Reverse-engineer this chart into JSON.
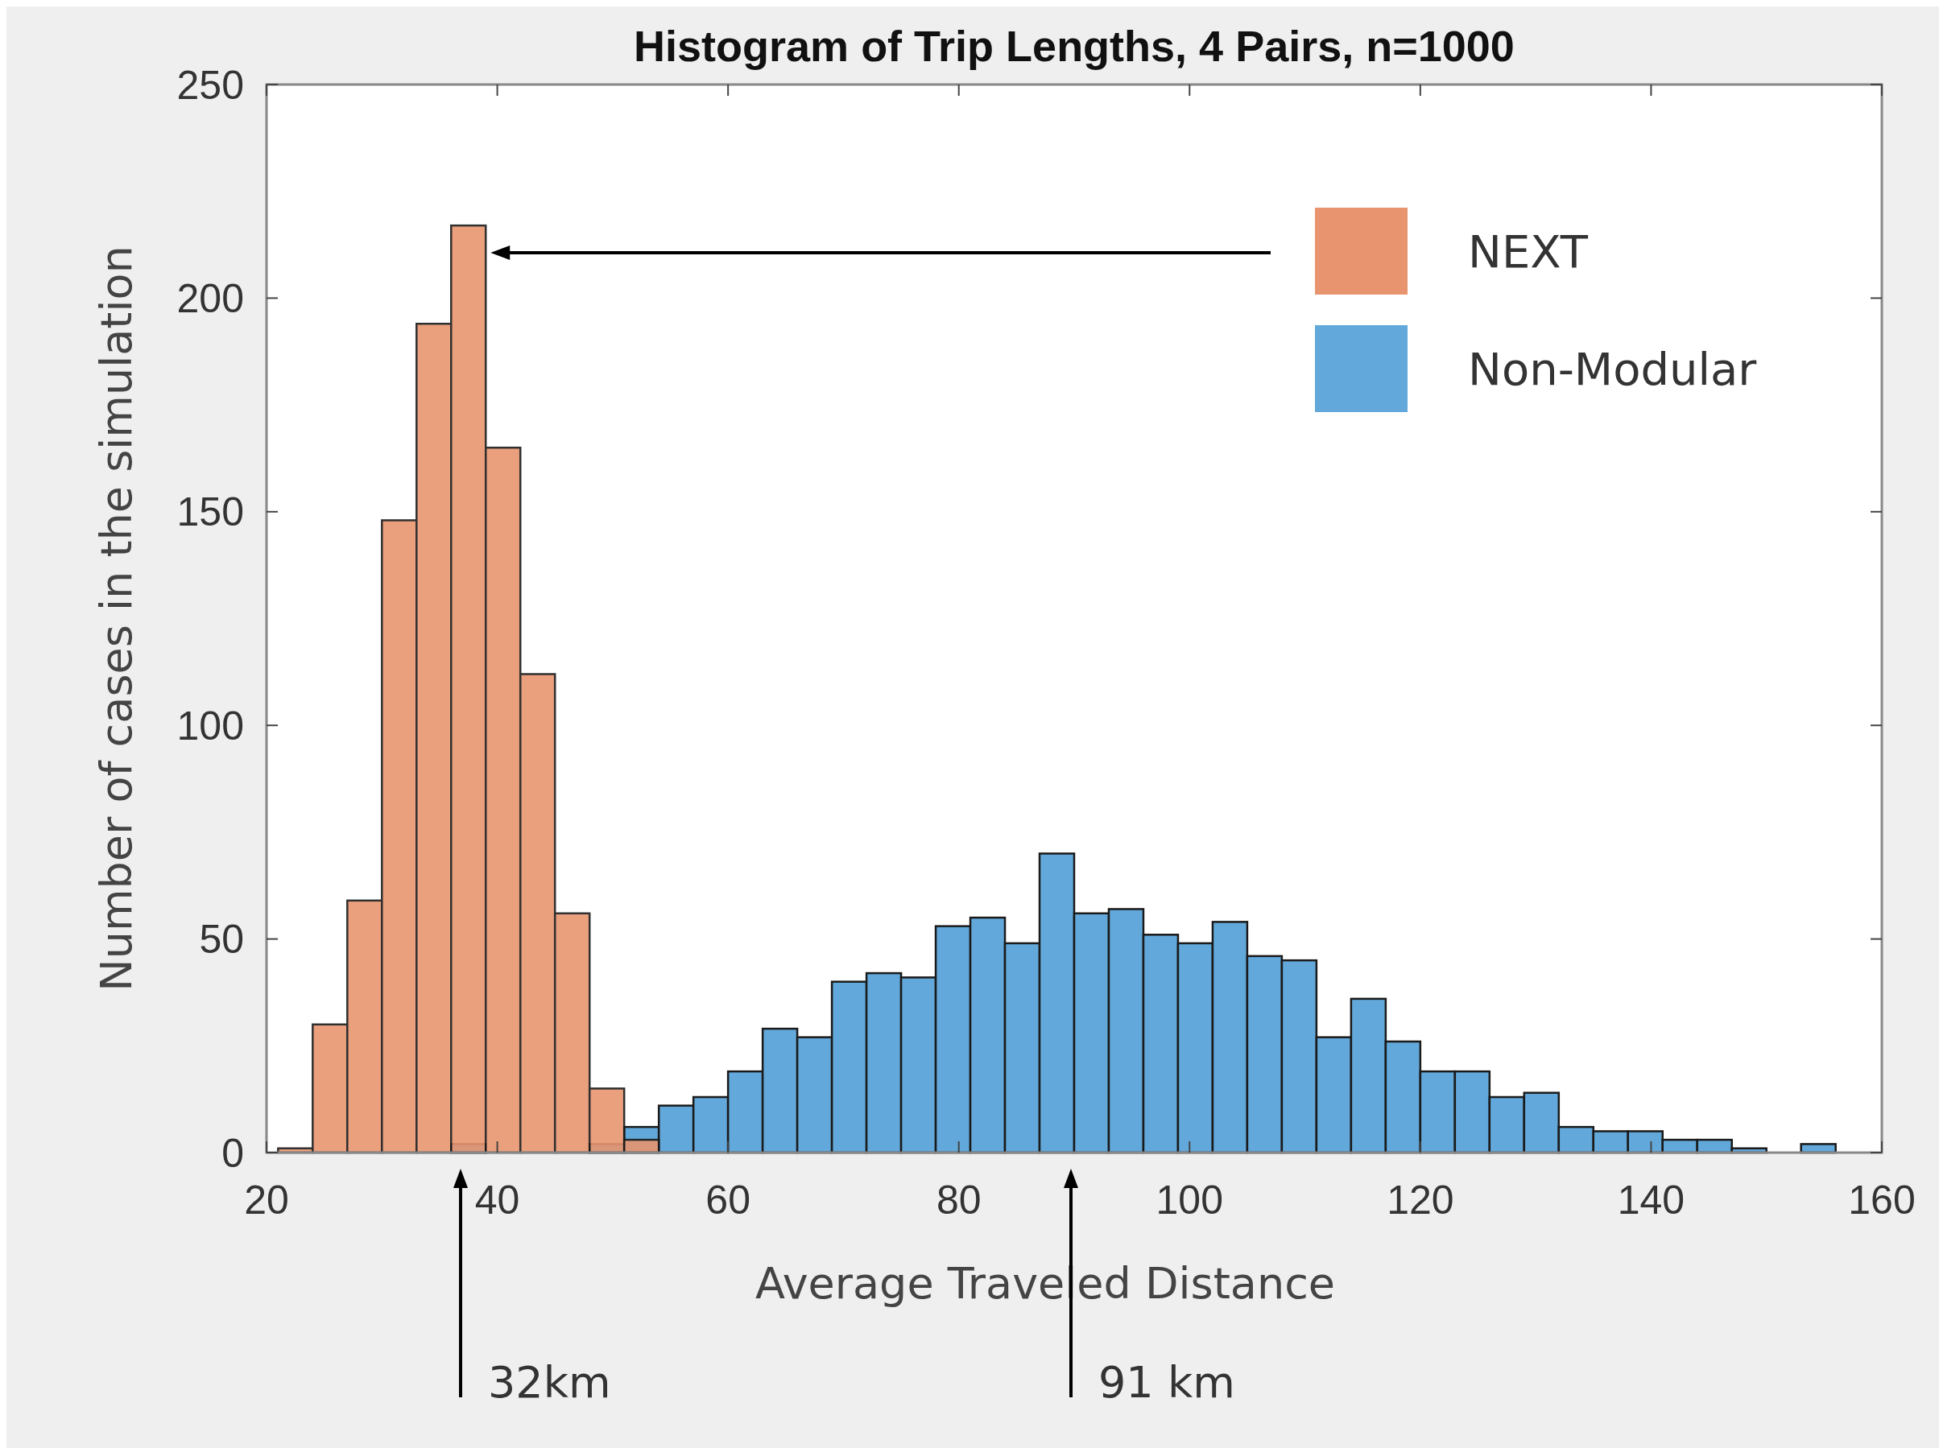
{
  "chart_data": {
    "type": "histogram",
    "title": "Histogram of Trip Lengths, 4 Pairs, n=1000",
    "xlabel": "Average Traveled Distance",
    "ylabel": "Number of cases in the simulation",
    "bins": [
      21,
      24,
      27,
      30,
      33,
      36,
      39,
      42,
      45,
      48,
      51,
      54,
      57,
      60,
      63,
      66,
      69,
      72,
      75,
      78,
      81,
      84,
      87,
      90,
      93,
      96,
      99,
      102,
      105,
      108,
      111,
      114,
      117,
      120,
      123,
      126,
      129,
      132,
      135,
      138,
      141,
      144,
      147,
      150,
      153,
      156
    ],
    "series": [
      {
        "name": "Non-Modular",
        "color": "#62a8da",
        "values": [
          0,
          0,
          0,
          0,
          0,
          2,
          0,
          0,
          0,
          2,
          6,
          11,
          13,
          19,
          29,
          27,
          40,
          42,
          41,
          53,
          55,
          49,
          70,
          56,
          57,
          51,
          49,
          54,
          46,
          45,
          27,
          36,
          26,
          19,
          19,
          13,
          14,
          6,
          5,
          5,
          3,
          3,
          1,
          0,
          2
        ]
      },
      {
        "name": "NEXT",
        "color": "#e8956f",
        "values": [
          1,
          30,
          59,
          148,
          194,
          217,
          165,
          112,
          56,
          15,
          3,
          0,
          0,
          0,
          0,
          0,
          0,
          0,
          0,
          0,
          0,
          0,
          0,
          0,
          0,
          0,
          0,
          0,
          0,
          0,
          0,
          0,
          0,
          0,
          0,
          0,
          0,
          0,
          0,
          0,
          0,
          0,
          0,
          0,
          0
        ]
      }
    ],
    "xlim": [
      20,
      160
    ],
    "xticks": [
      20,
      40,
      60,
      80,
      100,
      120,
      140,
      160
    ],
    "ylim": [
      0,
      250
    ],
    "yticks": [
      0,
      50,
      100,
      150,
      200,
      250
    ],
    "grid": false,
    "legend": "top right",
    "annotations": [
      "32km",
      "91 km"
    ]
  }
}
